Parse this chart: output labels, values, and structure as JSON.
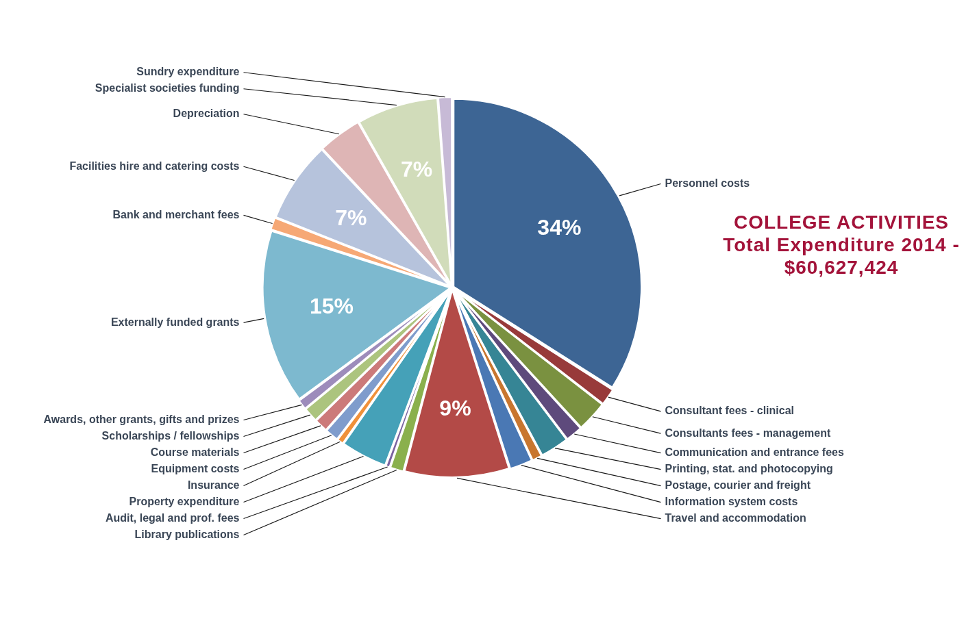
{
  "chart_data": {
    "type": "pie",
    "title": "COLLEGE ACTIVITIES",
    "subtitle": "Total Expenditure 2014 - $60,627,424",
    "categories": [
      "Personnel costs",
      "Consultant fees - clinical",
      "Consultants fees - management",
      "Communication and entrance fees",
      "Printing, stat. and photocopying",
      "Postage, courier and freight",
      "Information system costs",
      "Travel and accommodation",
      "Library publications",
      "Audit, legal and prof. fees",
      "Property expenditure",
      "Insurance",
      "Equipment costs",
      "Course materials",
      "Scholarships / fellowships",
      "Awards, other grants, gifts and prizes",
      "Externally funded grants",
      "Bank and merchant fees",
      "Facilities hire and catering costs",
      "Depreciation",
      "Specialist societies funding",
      "Sundry expenditure"
    ],
    "values": [
      34,
      1.5,
      2.7,
      1.5,
      2.5,
      0.9,
      2,
      9,
      1.2,
      0.4,
      4,
      0.6,
      1.2,
      1.2,
      1.3,
      0.9,
      15,
      1.1,
      7,
      3.8,
      7,
      1.2
    ],
    "colors": [
      "#3d6594",
      "#983a3a",
      "#7a9140",
      "#5e4a7c",
      "#368595",
      "#c8762f",
      "#4a78b4",
      "#b34a47",
      "#8ab04d",
      "#7a62a0",
      "#45a1b8",
      "#f0913a",
      "#7f9ccc",
      "#cc7a7a",
      "#acc47e",
      "#9d8cbb",
      "#7db9cf",
      "#f6a875",
      "#b6c3dc",
      "#deb5b5",
      "#d1dcba",
      "#c7bad6"
    ],
    "value_labels": [
      "34%",
      null,
      null,
      null,
      null,
      null,
      null,
      "9%",
      null,
      null,
      null,
      null,
      null,
      null,
      null,
      null,
      "15%",
      null,
      "7%",
      null,
      "7%",
      null
    ]
  }
}
